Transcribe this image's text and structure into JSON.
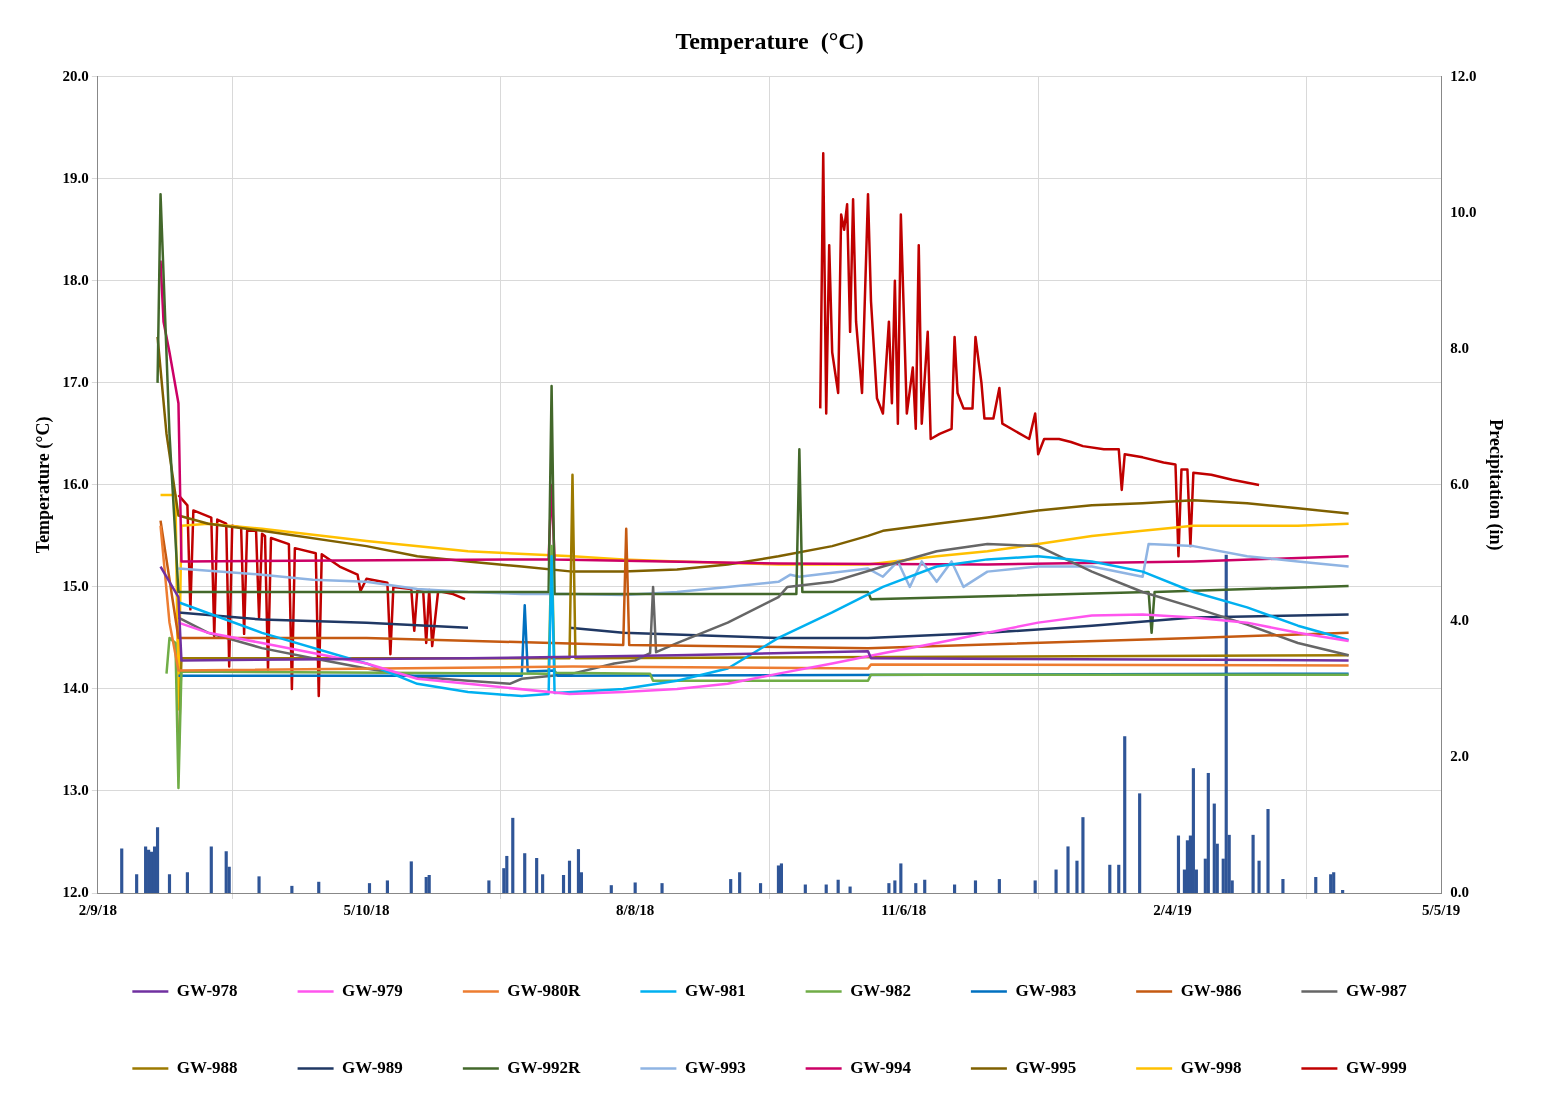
{
  "chart_data": {
    "type": "line",
    "title": "Temperature  (°C)",
    "ylabel": "Temperature (°C)",
    "y2label": "Precipitation (in)",
    "xlim": [
      "2018-02-09",
      "2019-05-05"
    ],
    "xticks": [
      {
        "value": "2018-02-09",
        "label": "2/9/18"
      },
      {
        "value": "2018-05-10",
        "label": "5/10/18"
      },
      {
        "value": "2018-08-08",
        "label": "8/8/18"
      },
      {
        "value": "2018-11-06",
        "label": "11/6/18"
      },
      {
        "value": "2019-02-04",
        "label": "2/4/19"
      },
      {
        "value": "2019-05-05",
        "label": "5/5/19"
      }
    ],
    "ylim": [
      12,
      20
    ],
    "yticks": [
      {
        "value": 12,
        "label": "12.0"
      },
      {
        "value": 13,
        "label": "13.0"
      },
      {
        "value": 14,
        "label": "14.0"
      },
      {
        "value": 15,
        "label": "15.0"
      },
      {
        "value": 16,
        "label": "16.0"
      },
      {
        "value": 17,
        "label": "17.0"
      },
      {
        "value": 18,
        "label": "18.0"
      },
      {
        "value": 19,
        "label": "19.0"
      },
      {
        "value": 20,
        "label": "20.0"
      }
    ],
    "y2lim": [
      0,
      12
    ],
    "y2ticks": [
      {
        "value": 0,
        "label": "0.0"
      },
      {
        "value": 2,
        "label": "2.0"
      },
      {
        "value": 4,
        "label": "4.0"
      },
      {
        "value": 6,
        "label": "6.0"
      },
      {
        "value": 8,
        "label": "8.0"
      },
      {
        "value": 10,
        "label": "10.0"
      },
      {
        "value": 12,
        "label": "12.0"
      }
    ],
    "grid": true,
    "legend": "bottom",
    "marker": "none",
    "line_style": "solid",
    "series": [
      {
        "type": "bar",
        "axis": "y2",
        "color": "#2f5597",
        "x": [
          "2018-02-17",
          "2018-02-22",
          "2018-02-25",
          "2018-02-26",
          "2018-02-27",
          "2018-02-28",
          "2018-03-01",
          "2018-03-05",
          "2018-03-11",
          "2018-03-19",
          "2018-03-24",
          "2018-03-25",
          "2018-04-04",
          "2018-04-15",
          "2018-04-24",
          "2018-05-11",
          "2018-05-17",
          "2018-05-25",
          "2018-05-30",
          "2018-05-31",
          "2018-06-20",
          "2018-06-25",
          "2018-06-26",
          "2018-06-28",
          "2018-07-02",
          "2018-07-06",
          "2018-07-08",
          "2018-07-15",
          "2018-07-17",
          "2018-07-20",
          "2018-07-21",
          "2018-07-31",
          "2018-08-08",
          "2018-08-17",
          "2018-09-09",
          "2018-09-12",
          "2018-09-19",
          "2018-09-25",
          "2018-09-26",
          "2018-10-04",
          "2018-10-11",
          "2018-10-15",
          "2018-10-19",
          "2018-11-01",
          "2018-11-03",
          "2018-11-05",
          "2018-11-10",
          "2018-11-13",
          "2018-11-23",
          "2018-11-30",
          "2018-12-08",
          "2018-12-20",
          "2018-12-27",
          "2018-12-31",
          "2019-01-03",
          "2019-01-05",
          "2019-01-14",
          "2019-01-17",
          "2019-01-19",
          "2019-01-24",
          "2019-02-06",
          "2019-02-08",
          "2019-02-09",
          "2019-02-10",
          "2019-02-11",
          "2019-02-12",
          "2019-02-15",
          "2019-02-16",
          "2019-02-18",
          "2019-02-19",
          "2019-02-21",
          "2019-02-22",
          "2019-02-23",
          "2019-02-24",
          "2019-03-03",
          "2019-03-05",
          "2019-03-08",
          "2019-03-13",
          "2019-03-24",
          "2019-03-29",
          "2019-03-30",
          "2019-04-02"
        ],
        "values": [
          0.65,
          0.27,
          0.68,
          0.63,
          0.6,
          0.68,
          0.96,
          0.27,
          0.3,
          0.68,
          0.61,
          0.38,
          0.24,
          0.1,
          0.16,
          0.14,
          0.18,
          0.46,
          0.23,
          0.26,
          0.18,
          0.36,
          0.54,
          1.1,
          0.58,
          0.51,
          0.27,
          0.26,
          0.47,
          0.64,
          0.3,
          0.11,
          0.15,
          0.14,
          0.2,
          0.3,
          0.14,
          0.4,
          0.43,
          0.12,
          0.12,
          0.19,
          0.09,
          0.14,
          0.18,
          0.43,
          0.14,
          0.19,
          0.12,
          0.18,
          0.2,
          0.18,
          0.34,
          0.68,
          0.47,
          1.11,
          0.41,
          0.41,
          2.3,
          1.46,
          0.84,
          0.34,
          0.77,
          0.84,
          1.83,
          0.34,
          0.5,
          1.76,
          1.31,
          0.72,
          0.5,
          4.97,
          0.85,
          0.18,
          0.85,
          0.47,
          1.23,
          0.2,
          0.23,
          0.27,
          0.3,
          0.04
        ]
      },
      {
        "name": "GW-978",
        "color": "#7030a0",
        "x": [
          "2018-03-02",
          "2018-03-08",
          "2018-03-09",
          "2018-06-13",
          "2018-08-22",
          "2018-10-25",
          "2018-10-26",
          "2019-04-04"
        ],
        "values": [
          15.2,
          14.9,
          14.28,
          14.3,
          14.33,
          14.37,
          14.3,
          14.28
        ]
      },
      {
        "name": "GW-979",
        "color": "#ff55ee",
        "x": [
          "2018-03-08",
          "2018-03-18",
          "2018-04-05",
          "2018-05-10",
          "2018-05-27",
          "2018-06-13",
          "2018-07-17",
          "2018-08-04",
          "2018-08-22",
          "2018-09-08",
          "2018-09-25",
          "2018-10-13",
          "2018-10-30",
          "2018-11-17",
          "2018-12-04",
          "2018-12-21",
          "2019-01-08",
          "2019-01-25",
          "2019-02-11",
          "2019-03-01",
          "2019-03-18",
          "2019-04-04"
        ],
        "values": [
          14.65,
          14.55,
          14.45,
          14.25,
          14.1,
          14.05,
          13.95,
          13.97,
          14.0,
          14.05,
          14.15,
          14.25,
          14.35,
          14.45,
          14.55,
          14.65,
          14.72,
          14.73,
          14.7,
          14.65,
          14.55,
          14.47
        ]
      },
      {
        "name": "GW-980R",
        "color": "#ed7d31",
        "x": [
          "2018-03-02",
          "2018-03-05",
          "2018-03-08",
          "2018-07-18",
          "2018-10-25",
          "2018-10-26",
          "2019-04-04"
        ],
        "values": [
          15.6,
          14.65,
          14.18,
          14.22,
          14.2,
          14.24,
          14.23
        ]
      },
      {
        "name": "GW-981",
        "color": "#00b0f0",
        "x": [
          "2018-03-08",
          "2018-04-05",
          "2018-05-10",
          "2018-05-27",
          "2018-06-13",
          "2018-07-01",
          "2018-07-10",
          "2018-07-11",
          "2018-07-12",
          "2018-07-18",
          "2018-08-04",
          "2018-08-22",
          "2018-09-08",
          "2018-09-25",
          "2018-10-13",
          "2018-10-30",
          "2018-11-17",
          "2018-12-04",
          "2018-12-21",
          "2019-01-08",
          "2019-01-25",
          "2019-02-11",
          "2019-03-01",
          "2019-03-18",
          "2019-04-04"
        ],
        "values": [
          14.85,
          14.55,
          14.25,
          14.05,
          13.97,
          13.93,
          13.95,
          15.3,
          13.96,
          13.97,
          14.0,
          14.08,
          14.2,
          14.5,
          14.75,
          15.0,
          15.2,
          15.27,
          15.3,
          15.25,
          15.15,
          14.95,
          14.8,
          14.62,
          14.48
        ]
      },
      {
        "name": "GW-982",
        "color": "#70ad47",
        "x": [
          "2018-03-04",
          "2018-03-05",
          "2018-03-07",
          "2018-03-08",
          "2018-03-09",
          "2018-07-10",
          "2018-07-11",
          "2018-07-12",
          "2018-08-13",
          "2018-08-14",
          "2018-10-25",
          "2018-10-26",
          "2019-04-04"
        ],
        "values": [
          14.15,
          14.5,
          14.45,
          13.03,
          14.17,
          14.15,
          15.4,
          14.16,
          14.15,
          14.08,
          14.08,
          14.14,
          14.14
        ]
      },
      {
        "name": "GW-983",
        "color": "#0070c0",
        "x": [
          "2018-03-08",
          "2018-07-01",
          "2018-07-02",
          "2018-07-03",
          "2018-07-12",
          "2018-07-13",
          "2019-04-04"
        ],
        "values": [
          14.13,
          14.13,
          14.82,
          14.17,
          14.18,
          14.13,
          14.15
        ]
      },
      {
        "name": "GW-986",
        "color": "#c55a11",
        "x": [
          "2018-03-02",
          "2018-03-08",
          "2018-05-10",
          "2018-08-04",
          "2018-08-05",
          "2018-08-06",
          "2018-10-25",
          "2019-02-11",
          "2019-04-04"
        ],
        "values": [
          15.65,
          14.5,
          14.5,
          14.43,
          15.57,
          14.43,
          14.4,
          14.5,
          14.55
        ]
      },
      {
        "name": "GW-987",
        "color": "#666666",
        "x": [
          "2018-03-08",
          "2018-03-18",
          "2018-04-05",
          "2018-04-22",
          "2018-05-10",
          "2018-05-27",
          "2018-06-13",
          "2018-06-27",
          "2018-07-01",
          "2018-07-18",
          "2018-08-01",
          "2018-08-08",
          "2018-08-13",
          "2018-08-14",
          "2018-08-15",
          "2018-08-22",
          "2018-09-08",
          "2018-09-25",
          "2018-09-28",
          "2018-10-13",
          "2018-10-30",
          "2018-11-17",
          "2018-12-04",
          "2018-12-21",
          "2019-01-08",
          "2019-01-25",
          "2019-02-11",
          "2019-03-01",
          "2019-03-18",
          "2019-04-04"
        ],
        "values": [
          14.7,
          14.55,
          14.4,
          14.3,
          14.2,
          14.12,
          14.08,
          14.05,
          14.1,
          14.15,
          14.25,
          14.28,
          14.35,
          15.0,
          14.36,
          14.45,
          14.65,
          14.9,
          15.0,
          15.05,
          15.2,
          15.35,
          15.42,
          15.4,
          15.15,
          14.95,
          14.8,
          14.63,
          14.45,
          14.33
        ]
      },
      {
        "name": "GW-988",
        "color": "#9c7a00",
        "x": [
          "2018-03-08",
          "2018-03-09",
          "2018-07-17",
          "2018-07-18",
          "2018-07-19",
          "2019-04-04"
        ],
        "values": [
          13.3,
          14.3,
          14.3,
          16.1,
          14.3,
          14.33
        ]
      },
      {
        "name": "GW-989",
        "color": "#203864",
        "x": [
          "2018-03-08",
          "2018-04-05",
          "2018-05-10",
          "2018-06-13",
          "2018-06-14",
          "2018-07-16",
          "2018-07-17",
          "2018-08-04",
          "2018-09-25",
          "2018-10-25",
          "2018-12-04",
          "2019-01-08",
          "2019-02-11",
          "2019-04-04"
        ],
        "values": [
          14.75,
          14.68,
          14.65,
          14.6,
          null,
          null,
          14.6,
          14.55,
          14.5,
          14.5,
          14.55,
          14.62,
          14.7,
          14.73
        ]
      },
      {
        "name": "GW-992R",
        "color": "#43682b",
        "x": [
          "2018-03-01",
          "2018-03-02",
          "2018-03-05",
          "2018-03-08",
          "2018-07-10",
          "2018-07-11",
          "2018-07-12",
          "2018-10-01",
          "2018-10-02",
          "2018-10-03",
          "2018-10-25",
          "2018-10-26",
          "2019-01-27",
          "2019-01-28",
          "2019-01-29",
          "2019-04-04"
        ],
        "values": [
          17.0,
          18.85,
          16.5,
          14.95,
          14.95,
          16.97,
          14.93,
          14.93,
          16.35,
          14.95,
          14.95,
          14.88,
          14.95,
          14.55,
          14.95,
          15.01
        ]
      },
      {
        "name": "GW-993",
        "color": "#8fb4e3",
        "x": [
          "2018-03-08",
          "2018-04-05",
          "2018-04-22",
          "2018-05-10",
          "2018-05-27",
          "2018-06-13",
          "2018-07-01",
          "2018-07-18",
          "2018-08-04",
          "2018-08-22",
          "2018-09-08",
          "2018-09-25",
          "2018-09-29",
          "2018-10-02",
          "2018-10-25",
          "2018-10-30",
          "2018-11-04",
          "2018-11-08",
          "2018-11-12",
          "2018-11-17",
          "2018-11-22",
          "2018-11-26",
          "2018-12-04",
          "2018-12-21",
          "2019-01-08",
          "2019-01-25",
          "2019-01-27",
          "2019-02-11",
          "2019-03-01",
          "2019-03-18",
          "2019-04-04"
        ],
        "values": [
          15.18,
          15.12,
          15.07,
          15.05,
          14.98,
          14.95,
          14.93,
          14.93,
          14.92,
          14.95,
          15.0,
          15.05,
          15.12,
          15.1,
          15.18,
          15.1,
          15.25,
          15.0,
          15.25,
          15.05,
          15.25,
          15.0,
          15.15,
          15.2,
          15.2,
          15.1,
          15.42,
          15.4,
          15.3,
          15.25,
          15.2
        ]
      },
      {
        "name": "GW-994",
        "color": "#cc0066",
        "x": [
          "2018-03-02",
          "2018-03-03",
          "2018-03-05",
          "2018-03-08",
          "2018-03-09",
          "2018-07-10",
          "2018-07-11",
          "2018-07-12",
          "2018-09-25",
          "2018-12-04",
          "2019-02-11",
          "2019-04-04"
        ],
        "values": [
          18.2,
          17.6,
          17.3,
          16.8,
          15.25,
          15.27,
          16.0,
          15.27,
          15.23,
          15.22,
          15.25,
          15.3
        ]
      },
      {
        "name": "GW-995",
        "color": "#7f6000",
        "x": [
          "2018-03-01",
          "2018-03-04",
          "2018-03-08",
          "2018-03-18",
          "2018-04-05",
          "2018-05-10",
          "2018-05-27",
          "2018-06-13",
          "2018-07-01",
          "2018-07-18",
          "2018-08-04",
          "2018-08-22",
          "2018-09-08",
          "2018-09-25",
          "2018-10-13",
          "2018-10-25",
          "2018-10-30",
          "2018-11-17",
          "2018-12-04",
          "2018-12-21",
          "2019-01-08",
          "2019-01-25",
          "2019-02-11",
          "2019-03-01",
          "2019-03-18",
          "2019-04-04"
        ],
        "values": [
          17.45,
          16.5,
          15.7,
          15.62,
          15.55,
          15.4,
          15.3,
          15.25,
          15.2,
          15.15,
          15.15,
          15.17,
          15.22,
          15.3,
          15.4,
          15.5,
          15.55,
          15.62,
          15.68,
          15.75,
          15.8,
          15.82,
          15.85,
          15.82,
          15.77,
          15.72
        ]
      },
      {
        "name": "GW-998",
        "color": "#ffc000",
        "x": [
          "2018-03-02",
          "2018-03-07",
          "2018-03-08",
          "2018-03-09",
          "2018-03-18",
          "2018-04-05",
          "2018-05-10",
          "2018-06-13",
          "2018-07-18",
          "2018-08-04",
          "2018-08-22",
          "2018-09-25",
          "2018-10-25",
          "2018-11-17",
          "2018-12-04",
          "2018-12-21",
          "2019-01-08",
          "2019-01-25",
          "2019-02-11",
          "2019-03-01",
          "2019-03-18",
          "2019-04-04"
        ],
        "values": [
          15.9,
          15.9,
          13.8,
          15.6,
          15.62,
          15.57,
          15.45,
          15.35,
          15.3,
          15.27,
          15.25,
          15.22,
          15.22,
          15.3,
          15.35,
          15.42,
          15.5,
          15.55,
          15.6,
          15.6,
          15.6,
          15.62
        ]
      },
      {
        "name": "GW-999",
        "color": "#c00000",
        "x": [
          "2018-03-08",
          "2018-03-11",
          "2018-03-12",
          "2018-03-13",
          "2018-03-19",
          "2018-03-20",
          "2018-03-21",
          "2018-03-24",
          "2018-03-25",
          "2018-03-26",
          "2018-03-29",
          "2018-03-30",
          "2018-03-31",
          "2018-04-03",
          "2018-04-04",
          "2018-04-05",
          "2018-04-06",
          "2018-04-07",
          "2018-04-08",
          "2018-04-14",
          "2018-04-15",
          "2018-04-16",
          "2018-04-23",
          "2018-04-24",
          "2018-04-25",
          "2018-05-01",
          "2018-05-07",
          "2018-05-08",
          "2018-05-10",
          "2018-05-17",
          "2018-05-18",
          "2018-05-19",
          "2018-05-25",
          "2018-05-26",
          "2018-05-27",
          "2018-05-29",
          "2018-05-30",
          "2018-05-31",
          "2018-06-01",
          "2018-06-03",
          "2018-06-08",
          "2018-06-12",
          "2018-06-13",
          "2018-10-08",
          "2018-10-09",
          "2018-10-10",
          "2018-10-11",
          "2018-10-12",
          "2018-10-13",
          "2018-10-15",
          "2018-10-16",
          "2018-10-17",
          "2018-10-18",
          "2018-10-19",
          "2018-10-20",
          "2018-10-21",
          "2018-10-23",
          "2018-10-25",
          "2018-10-26",
          "2018-10-28",
          "2018-10-30",
          "2018-11-01",
          "2018-11-02",
          "2018-11-03",
          "2018-11-04",
          "2018-11-05",
          "2018-11-07",
          "2018-11-09",
          "2018-11-10",
          "2018-11-11",
          "2018-11-12",
          "2018-11-14",
          "2018-11-15",
          "2018-11-18",
          "2018-11-22",
          "2018-11-23",
          "2018-11-24",
          "2018-11-26",
          "2018-11-29",
          "2018-11-30",
          "2018-12-02",
          "2018-12-03",
          "2018-12-06",
          "2018-12-08",
          "2018-12-09",
          "2018-12-12",
          "2018-12-18",
          "2018-12-20",
          "2018-12-21",
          "2018-12-23",
          "2018-12-28",
          "2019-01-01",
          "2019-01-05",
          "2019-01-12",
          "2019-01-17",
          "2019-01-18",
          "2019-01-19",
          "2019-01-25",
          "2019-02-01",
          "2019-02-05",
          "2019-02-06",
          "2019-02-07",
          "2019-02-09",
          "2019-02-10",
          "2019-02-11",
          "2019-02-17",
          "2019-02-24",
          "2019-03-05"
        ],
        "values": [
          15.9,
          15.8,
          14.78,
          15.75,
          15.68,
          14.52,
          15.66,
          15.62,
          14.22,
          15.6,
          15.58,
          14.54,
          15.55,
          15.55,
          14.7,
          15.52,
          15.5,
          14.19,
          15.48,
          15.42,
          14.0,
          15.38,
          15.33,
          13.93,
          15.32,
          15.2,
          15.12,
          14.96,
          15.08,
          15.04,
          14.34,
          15.0,
          14.98,
          14.57,
          14.96,
          14.95,
          14.45,
          14.97,
          14.42,
          14.96,
          14.93,
          14.88,
          null,
          null,
          16.75,
          19.25,
          16.7,
          18.35,
          17.3,
          16.9,
          18.65,
          18.5,
          18.75,
          17.5,
          18.8,
          17.6,
          16.9,
          18.85,
          17.8,
          16.85,
          16.7,
          17.6,
          16.8,
          18.0,
          16.6,
          18.65,
          16.7,
          17.15,
          16.55,
          18.35,
          16.6,
          17.5,
          16.45,
          16.5,
          16.55,
          17.45,
          16.9,
          16.75,
          16.75,
          17.45,
          17.0,
          16.65,
          16.65,
          16.95,
          16.6,
          16.55,
          16.45,
          16.7,
          16.3,
          16.45,
          16.45,
          16.42,
          16.38,
          16.35,
          16.35,
          15.95,
          16.3,
          16.27,
          16.22,
          16.2,
          15.3,
          16.15,
          16.15,
          15.4,
          16.12,
          16.1,
          16.05,
          16.0
        ]
      }
    ]
  }
}
